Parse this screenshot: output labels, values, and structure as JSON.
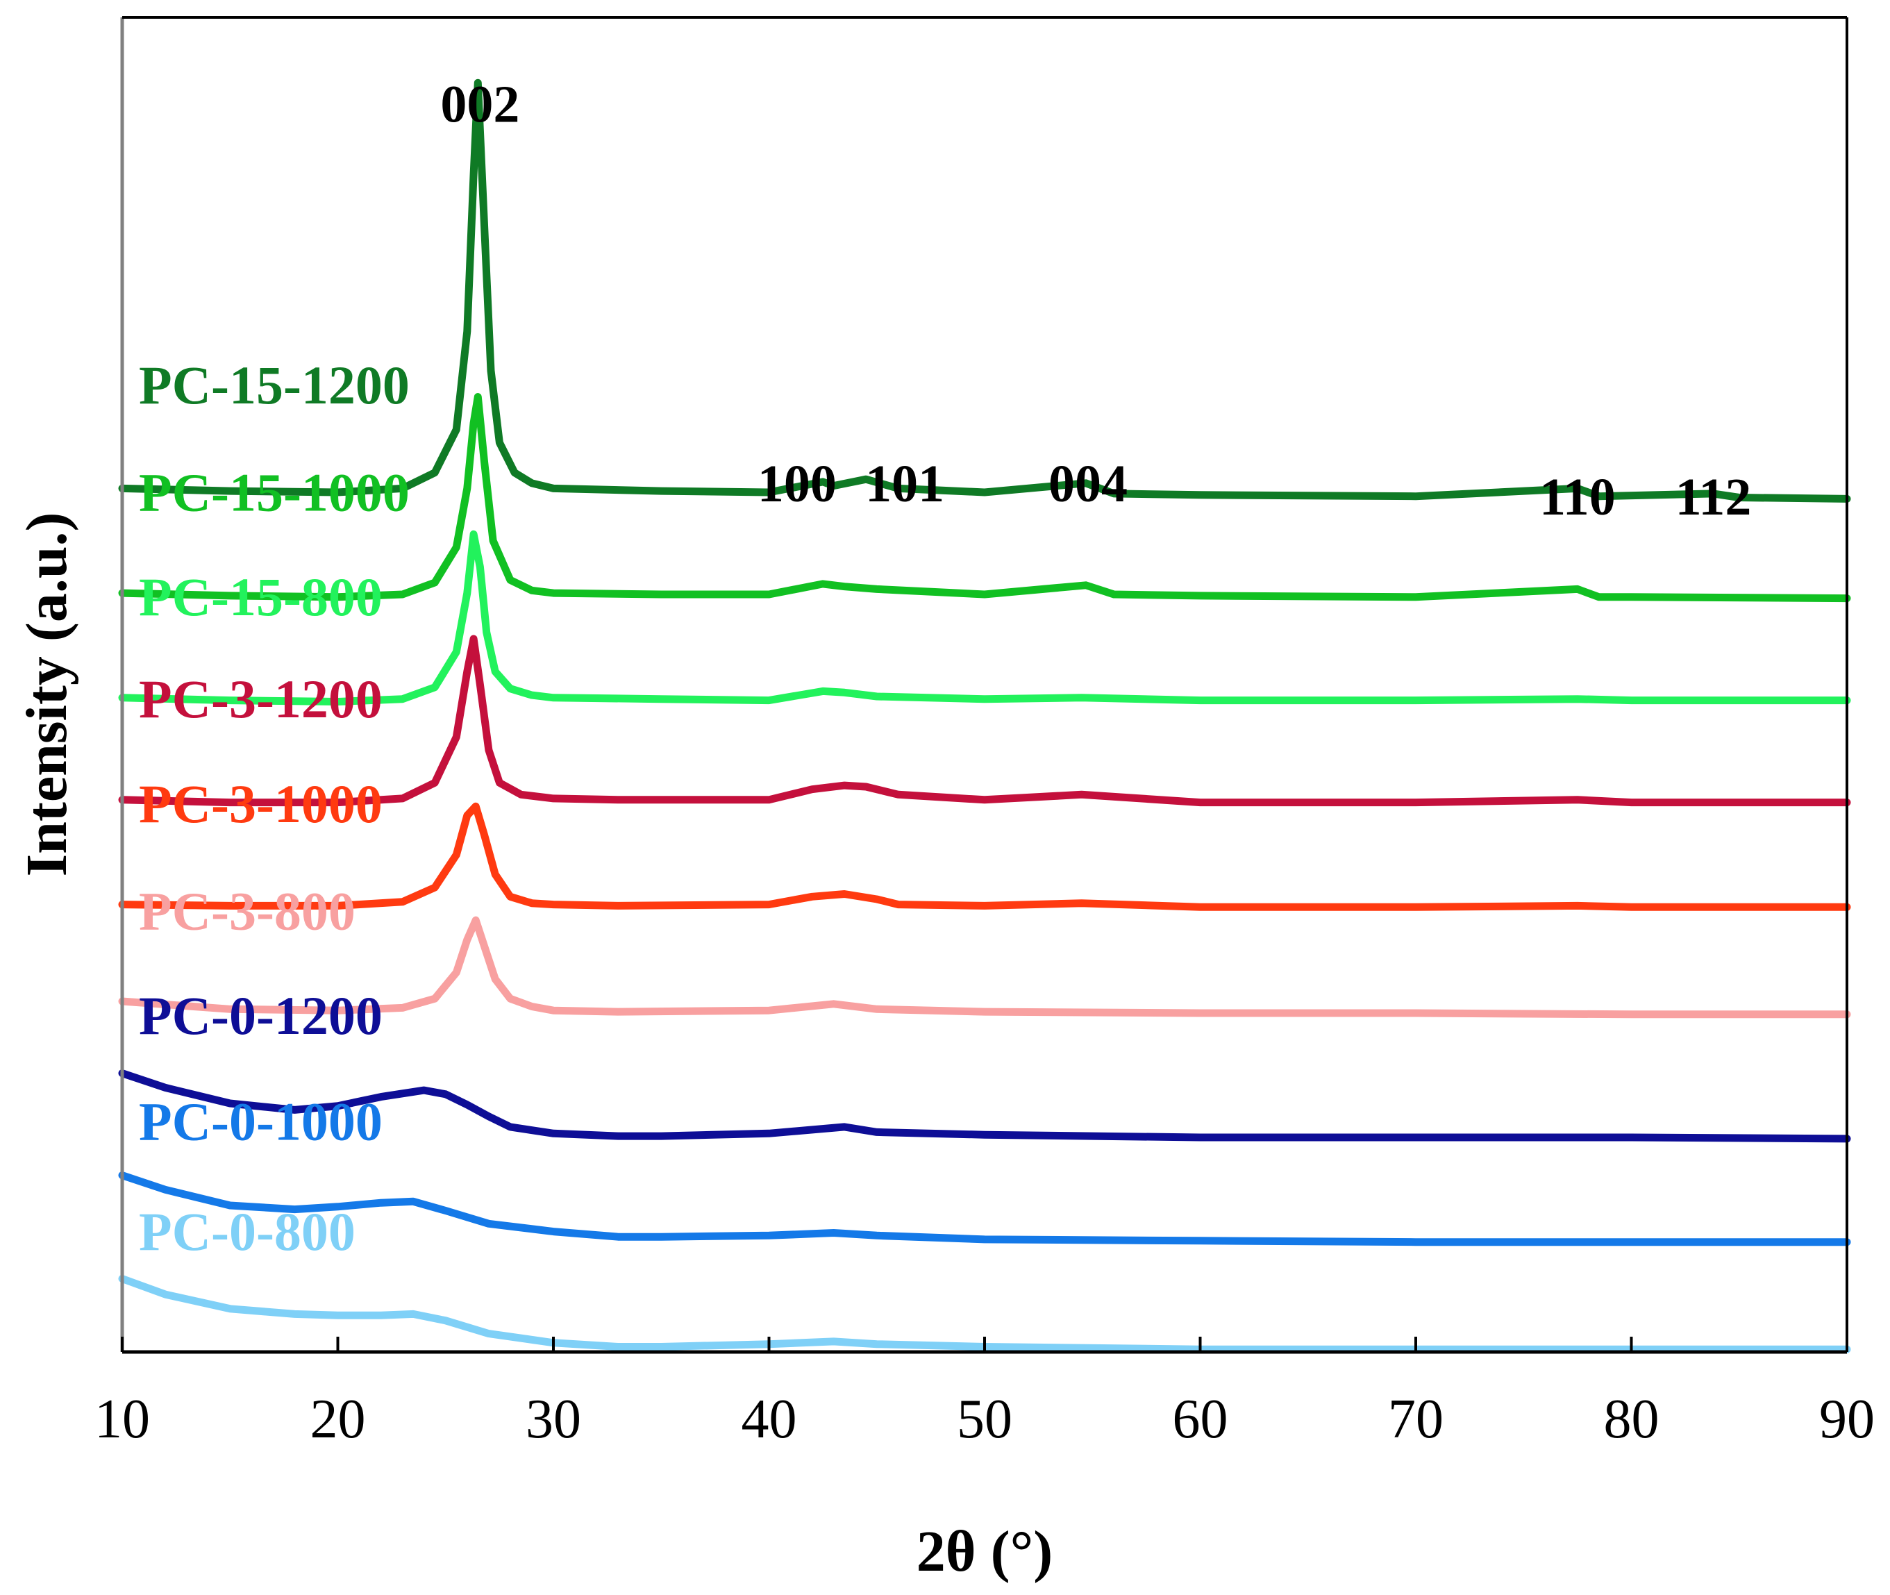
{
  "chart_data": {
    "type": "line",
    "title": "",
    "xlabel": "2θ (°)",
    "ylabel": "Intensity (a.u.)",
    "xlim": [
      10,
      90
    ],
    "ylim": [
      0,
      10.2
    ],
    "xticks": [
      "10",
      "20",
      "30",
      "40",
      "50",
      "60",
      "70",
      "80",
      "90"
    ],
    "xtick_values": [
      10,
      20,
      30,
      40,
      50,
      60,
      70,
      80,
      90
    ],
    "peak_labels": [
      {
        "text": "002",
        "x": 26.6,
        "y": 9.4
      },
      {
        "text": "100",
        "x": 41.3,
        "y": 6.5
      },
      {
        "text": "101",
        "x": 46.3,
        "y": 6.5
      },
      {
        "text": "004",
        "x": 54.8,
        "y": 6.5
      },
      {
        "text": "110",
        "x": 77.5,
        "y": 6.4
      },
      {
        "text": "112",
        "x": 83.8,
        "y": 6.4
      }
    ],
    "series": [
      {
        "name": "PC-0-800",
        "color": "#7fd0f7",
        "label_y": 0.78,
        "x": [
          10,
          12,
          15,
          18,
          20,
          22,
          23.5,
          25,
          27,
          30,
          33,
          35,
          40,
          43,
          45,
          50,
          60,
          70,
          80,
          90
        ],
        "y": [
          0.56,
          0.44,
          0.33,
          0.29,
          0.28,
          0.28,
          0.29,
          0.24,
          0.14,
          0.07,
          0.04,
          0.04,
          0.06,
          0.08,
          0.06,
          0.04,
          0.02,
          0.02,
          0.02,
          0.02
        ]
      },
      {
        "name": "PC-0-1000",
        "color": "#1479e8",
        "label_y": 1.62,
        "x": [
          10,
          12,
          15,
          18,
          20,
          22,
          23.5,
          25,
          27,
          30,
          33,
          35,
          40,
          43,
          45,
          50,
          60,
          70,
          80,
          90
        ],
        "y": [
          1.35,
          1.24,
          1.12,
          1.09,
          1.11,
          1.14,
          1.15,
          1.08,
          0.98,
          0.92,
          0.88,
          0.88,
          0.89,
          0.91,
          0.89,
          0.86,
          0.85,
          0.84,
          0.84,
          0.84
        ]
      },
      {
        "name": "PC-0-1200",
        "color": "#0e0e96",
        "label_y": 2.43,
        "x": [
          10,
          12,
          15,
          18,
          20,
          22,
          24,
          25,
          26,
          27,
          28,
          30,
          33,
          35,
          40,
          43.5,
          45,
          50,
          60,
          70,
          80,
          90
        ],
        "y": [
          2.13,
          2.02,
          1.9,
          1.85,
          1.88,
          1.95,
          2.0,
          1.97,
          1.89,
          1.8,
          1.72,
          1.67,
          1.65,
          1.65,
          1.67,
          1.72,
          1.68,
          1.66,
          1.64,
          1.64,
          1.64,
          1.63
        ]
      },
      {
        "name": "PC-3-800",
        "color": "#f8a0a0",
        "label_y": 3.23,
        "x": [
          10,
          15,
          20,
          23,
          24.5,
          25.5,
          26,
          26.4,
          26.8,
          27.3,
          28,
          29,
          30,
          33,
          40,
          43,
          45,
          50,
          60,
          70,
          80,
          90
        ],
        "y": [
          2.68,
          2.62,
          2.61,
          2.63,
          2.7,
          2.9,
          3.15,
          3.3,
          3.1,
          2.85,
          2.7,
          2.64,
          2.61,
          2.6,
          2.61,
          2.66,
          2.62,
          2.6,
          2.59,
          2.59,
          2.58,
          2.58
        ]
      },
      {
        "name": "PC-3-1000",
        "color": "#ff3a10",
        "label_y": 4.05,
        "x": [
          10,
          15,
          20,
          23,
          24.5,
          25.5,
          26,
          26.4,
          26.8,
          27.3,
          28,
          29,
          30,
          33,
          40,
          42,
          43.5,
          45,
          46,
          50,
          54.5,
          60,
          70,
          77.5,
          80,
          90
        ],
        "y": [
          3.42,
          3.41,
          3.41,
          3.44,
          3.55,
          3.8,
          4.1,
          4.17,
          3.95,
          3.65,
          3.48,
          3.43,
          3.42,
          3.41,
          3.42,
          3.48,
          3.5,
          3.46,
          3.42,
          3.41,
          3.43,
          3.4,
          3.4,
          3.41,
          3.4,
          3.4
        ]
      },
      {
        "name": "PC-3-1200",
        "color": "#c4103c",
        "label_y": 4.85,
        "x": [
          10,
          15,
          20,
          23,
          24.5,
          25.5,
          26,
          26.3,
          26.6,
          27,
          27.5,
          28.5,
          30,
          33,
          40,
          42,
          43.5,
          44.5,
          46,
          50,
          54.5,
          60,
          70,
          77.5,
          80,
          90
        ],
        "y": [
          4.22,
          4.2,
          4.2,
          4.23,
          4.35,
          4.7,
          5.2,
          5.45,
          5.1,
          4.6,
          4.35,
          4.26,
          4.23,
          4.22,
          4.22,
          4.3,
          4.33,
          4.32,
          4.26,
          4.22,
          4.26,
          4.2,
          4.2,
          4.22,
          4.2,
          4.2
        ]
      },
      {
        "name": "PC-15-800",
        "color": "#22f25c",
        "label_y": 5.63,
        "x": [
          10,
          15,
          20,
          23,
          24.5,
          25.5,
          26,
          26.3,
          26.6,
          26.9,
          27.3,
          28,
          29,
          30,
          35,
          40,
          42.5,
          43.5,
          45,
          50,
          54.5,
          60,
          70,
          77.5,
          80,
          90
        ],
        "y": [
          5.0,
          4.98,
          4.97,
          4.99,
          5.08,
          5.35,
          5.8,
          6.25,
          6.0,
          5.5,
          5.2,
          5.07,
          5.02,
          5.0,
          4.99,
          4.98,
          5.05,
          5.04,
          5.01,
          4.99,
          5.0,
          4.98,
          4.98,
          4.99,
          4.98,
          4.98
        ]
      },
      {
        "name": "PC-15-1000",
        "color": "#11c022",
        "label_y": 6.43,
        "x": [
          10,
          15,
          20,
          23,
          24.5,
          25.5,
          26,
          26.3,
          26.5,
          26.8,
          27.2,
          28,
          29,
          30,
          35,
          40,
          42.5,
          43.5,
          45,
          50,
          54.7,
          56,
          60,
          70,
          77.5,
          78.5,
          80,
          90
        ],
        "y": [
          5.8,
          5.78,
          5.77,
          5.79,
          5.88,
          6.15,
          6.6,
          7.1,
          7.3,
          6.8,
          6.2,
          5.9,
          5.82,
          5.8,
          5.79,
          5.79,
          5.87,
          5.85,
          5.83,
          5.79,
          5.86,
          5.79,
          5.78,
          5.77,
          5.83,
          5.77,
          5.77,
          5.76
        ]
      },
      {
        "name": "PC-15-1200",
        "color": "#0f7a25",
        "label_y": 7.25,
        "x": [
          10,
          15,
          20,
          23,
          24.5,
          25.5,
          26,
          26.3,
          26.5,
          26.8,
          27.1,
          27.5,
          28.2,
          29,
          30,
          35,
          40,
          42.5,
          43,
          44.5,
          46,
          50,
          54.7,
          56,
          60,
          70,
          77.5,
          78.5,
          83.8,
          85,
          90
        ],
        "y": [
          6.6,
          6.58,
          6.57,
          6.6,
          6.72,
          7.05,
          7.8,
          9.0,
          9.7,
          8.6,
          7.5,
          6.95,
          6.72,
          6.64,
          6.6,
          6.58,
          6.57,
          6.65,
          6.62,
          6.67,
          6.6,
          6.57,
          6.64,
          6.56,
          6.55,
          6.54,
          6.6,
          6.54,
          6.56,
          6.53,
          6.52
        ]
      }
    ]
  }
}
